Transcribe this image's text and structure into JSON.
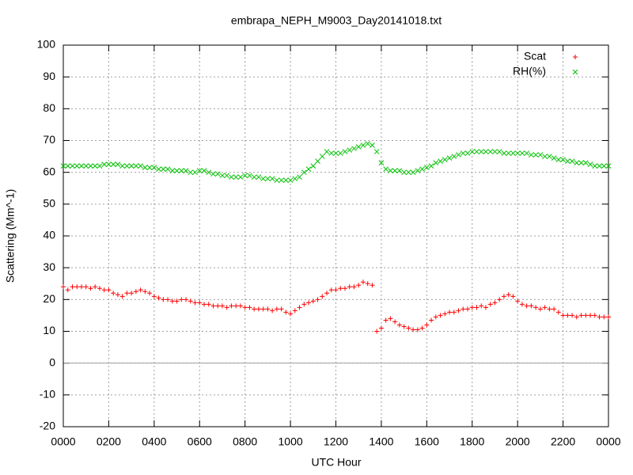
{
  "chart_data": {
    "type": "scatter",
    "title": "embrapa_NEPH_M9003_Day20141018.txt",
    "xlabel": "UTC Hour",
    "ylabel": "Scattering (Mm^-1)",
    "x": [
      0,
      0.2,
      0.4,
      0.6,
      0.8,
      1,
      1.2,
      1.4,
      1.6,
      1.8,
      2,
      2.2,
      2.4,
      2.6,
      2.8,
      3,
      3.2,
      3.4,
      3.6,
      3.8,
      4,
      4.2,
      4.4,
      4.6,
      4.8,
      5,
      5.2,
      5.4,
      5.6,
      5.8,
      6,
      6.2,
      6.4,
      6.6,
      6.8,
      7,
      7.2,
      7.4,
      7.6,
      7.8,
      8,
      8.2,
      8.4,
      8.6,
      8.8,
      9,
      9.2,
      9.4,
      9.6,
      9.8,
      10,
      10.2,
      10.4,
      10.6,
      10.8,
      11,
      11.2,
      11.4,
      11.6,
      11.8,
      12,
      12.2,
      12.4,
      12.6,
      12.8,
      13,
      13.2,
      13.4,
      13.6,
      13.8,
      14,
      14.2,
      14.4,
      14.6,
      14.8,
      15,
      15.2,
      15.4,
      15.6,
      15.8,
      16,
      16.2,
      16.4,
      16.6,
      16.8,
      17,
      17.2,
      17.4,
      17.6,
      17.8,
      18,
      18.2,
      18.4,
      18.6,
      18.8,
      19,
      19.2,
      19.4,
      19.6,
      19.8,
      20,
      20.2,
      20.4,
      20.6,
      20.8,
      21,
      21.2,
      21.4,
      21.6,
      21.8,
      22,
      22.2,
      22.4,
      22.6,
      22.8,
      23,
      23.2,
      23.4,
      23.6,
      23.8,
      24
    ],
    "series": [
      {
        "name": "Scat",
        "color": "#ff0000",
        "marker": "plus",
        "values": [
          24,
          23,
          24,
          24,
          24,
          24,
          23.5,
          24,
          23.5,
          23,
          23,
          22,
          21.5,
          21,
          22,
          22,
          22.5,
          23,
          22.5,
          22,
          21,
          20.5,
          20,
          20,
          19.5,
          19.5,
          20,
          20,
          19.5,
          19,
          19,
          18.5,
          18.5,
          18,
          18,
          18,
          17.5,
          18,
          18,
          18,
          17.5,
          17.5,
          17,
          17,
          17,
          17,
          16.5,
          17,
          17,
          16,
          15.5,
          16.5,
          17.5,
          18.5,
          19,
          19.5,
          20,
          21,
          22,
          23,
          23,
          23.5,
          23.5,
          24,
          24,
          24.5,
          25.5,
          25,
          24.5,
          10,
          11,
          13.5,
          14,
          13,
          12,
          11.5,
          11,
          10.5,
          10.5,
          11,
          12,
          13.5,
          14.5,
          15,
          15.5,
          16,
          16,
          16.5,
          17,
          17,
          17.5,
          17.5,
          18,
          17.5,
          18.5,
          19,
          20,
          21,
          21.5,
          21,
          19.5,
          18.5,
          18,
          18,
          17.5,
          17,
          17.5,
          17,
          17,
          16,
          15,
          15,
          15,
          14.5,
          15,
          15,
          15,
          15,
          14.5,
          14.5,
          14.5
        ]
      },
      {
        "name": "RH(%)",
        "color": "#00c000",
        "marker": "cross",
        "values": [
          62,
          62,
          62,
          62,
          62,
          62,
          62,
          62,
          62,
          62.5,
          62.5,
          62.5,
          62.5,
          62,
          62,
          62,
          62,
          62,
          61.5,
          61.5,
          61.5,
          61,
          61,
          61,
          60.5,
          60.5,
          60.5,
          60.5,
          60,
          60,
          60.5,
          60.5,
          60,
          59.5,
          59.5,
          59,
          59,
          58.5,
          58.5,
          58.5,
          59,
          59,
          58.5,
          58.5,
          58,
          58,
          58,
          57.5,
          57.5,
          57.5,
          57.5,
          58,
          58.5,
          60,
          61,
          62,
          63.5,
          65,
          66.5,
          66,
          66,
          66,
          66.5,
          67,
          67.5,
          68,
          68.5,
          69,
          68.5,
          66.5,
          63,
          61,
          60.5,
          60.5,
          60.5,
          60,
          60,
          60,
          60.5,
          61,
          61.5,
          62,
          63,
          63.5,
          64,
          64.5,
          65,
          65.5,
          66,
          66,
          66.5,
          66.5,
          66.5,
          66.5,
          66.5,
          66.5,
          66.5,
          66,
          66,
          66,
          66,
          66,
          66,
          65.5,
          65.5,
          65.5,
          65,
          65,
          64.5,
          64,
          64,
          63.5,
          63.5,
          63,
          63,
          63,
          62.5,
          62,
          62,
          62,
          62
        ]
      }
    ],
    "xlim": [
      0,
      24
    ],
    "xticks": [
      {
        "value": 0,
        "label": "0000"
      },
      {
        "value": 2,
        "label": "0200"
      },
      {
        "value": 4,
        "label": "0400"
      },
      {
        "value": 6,
        "label": "0600"
      },
      {
        "value": 8,
        "label": "0800"
      },
      {
        "value": 10,
        "label": "1000"
      },
      {
        "value": 12,
        "label": "1200"
      },
      {
        "value": 14,
        "label": "1400"
      },
      {
        "value": 16,
        "label": "1600"
      },
      {
        "value": 18,
        "label": "1800"
      },
      {
        "value": 20,
        "label": "2000"
      },
      {
        "value": 22,
        "label": "2200"
      },
      {
        "value": 24,
        "label": "0000"
      }
    ],
    "ylim": [
      -20,
      100
    ],
    "yticks": [
      -20,
      -10,
      0,
      10,
      20,
      30,
      40,
      50,
      60,
      70,
      80,
      90,
      100
    ],
    "grid": true,
    "zeroaxis": true,
    "legend": "top-right"
  }
}
